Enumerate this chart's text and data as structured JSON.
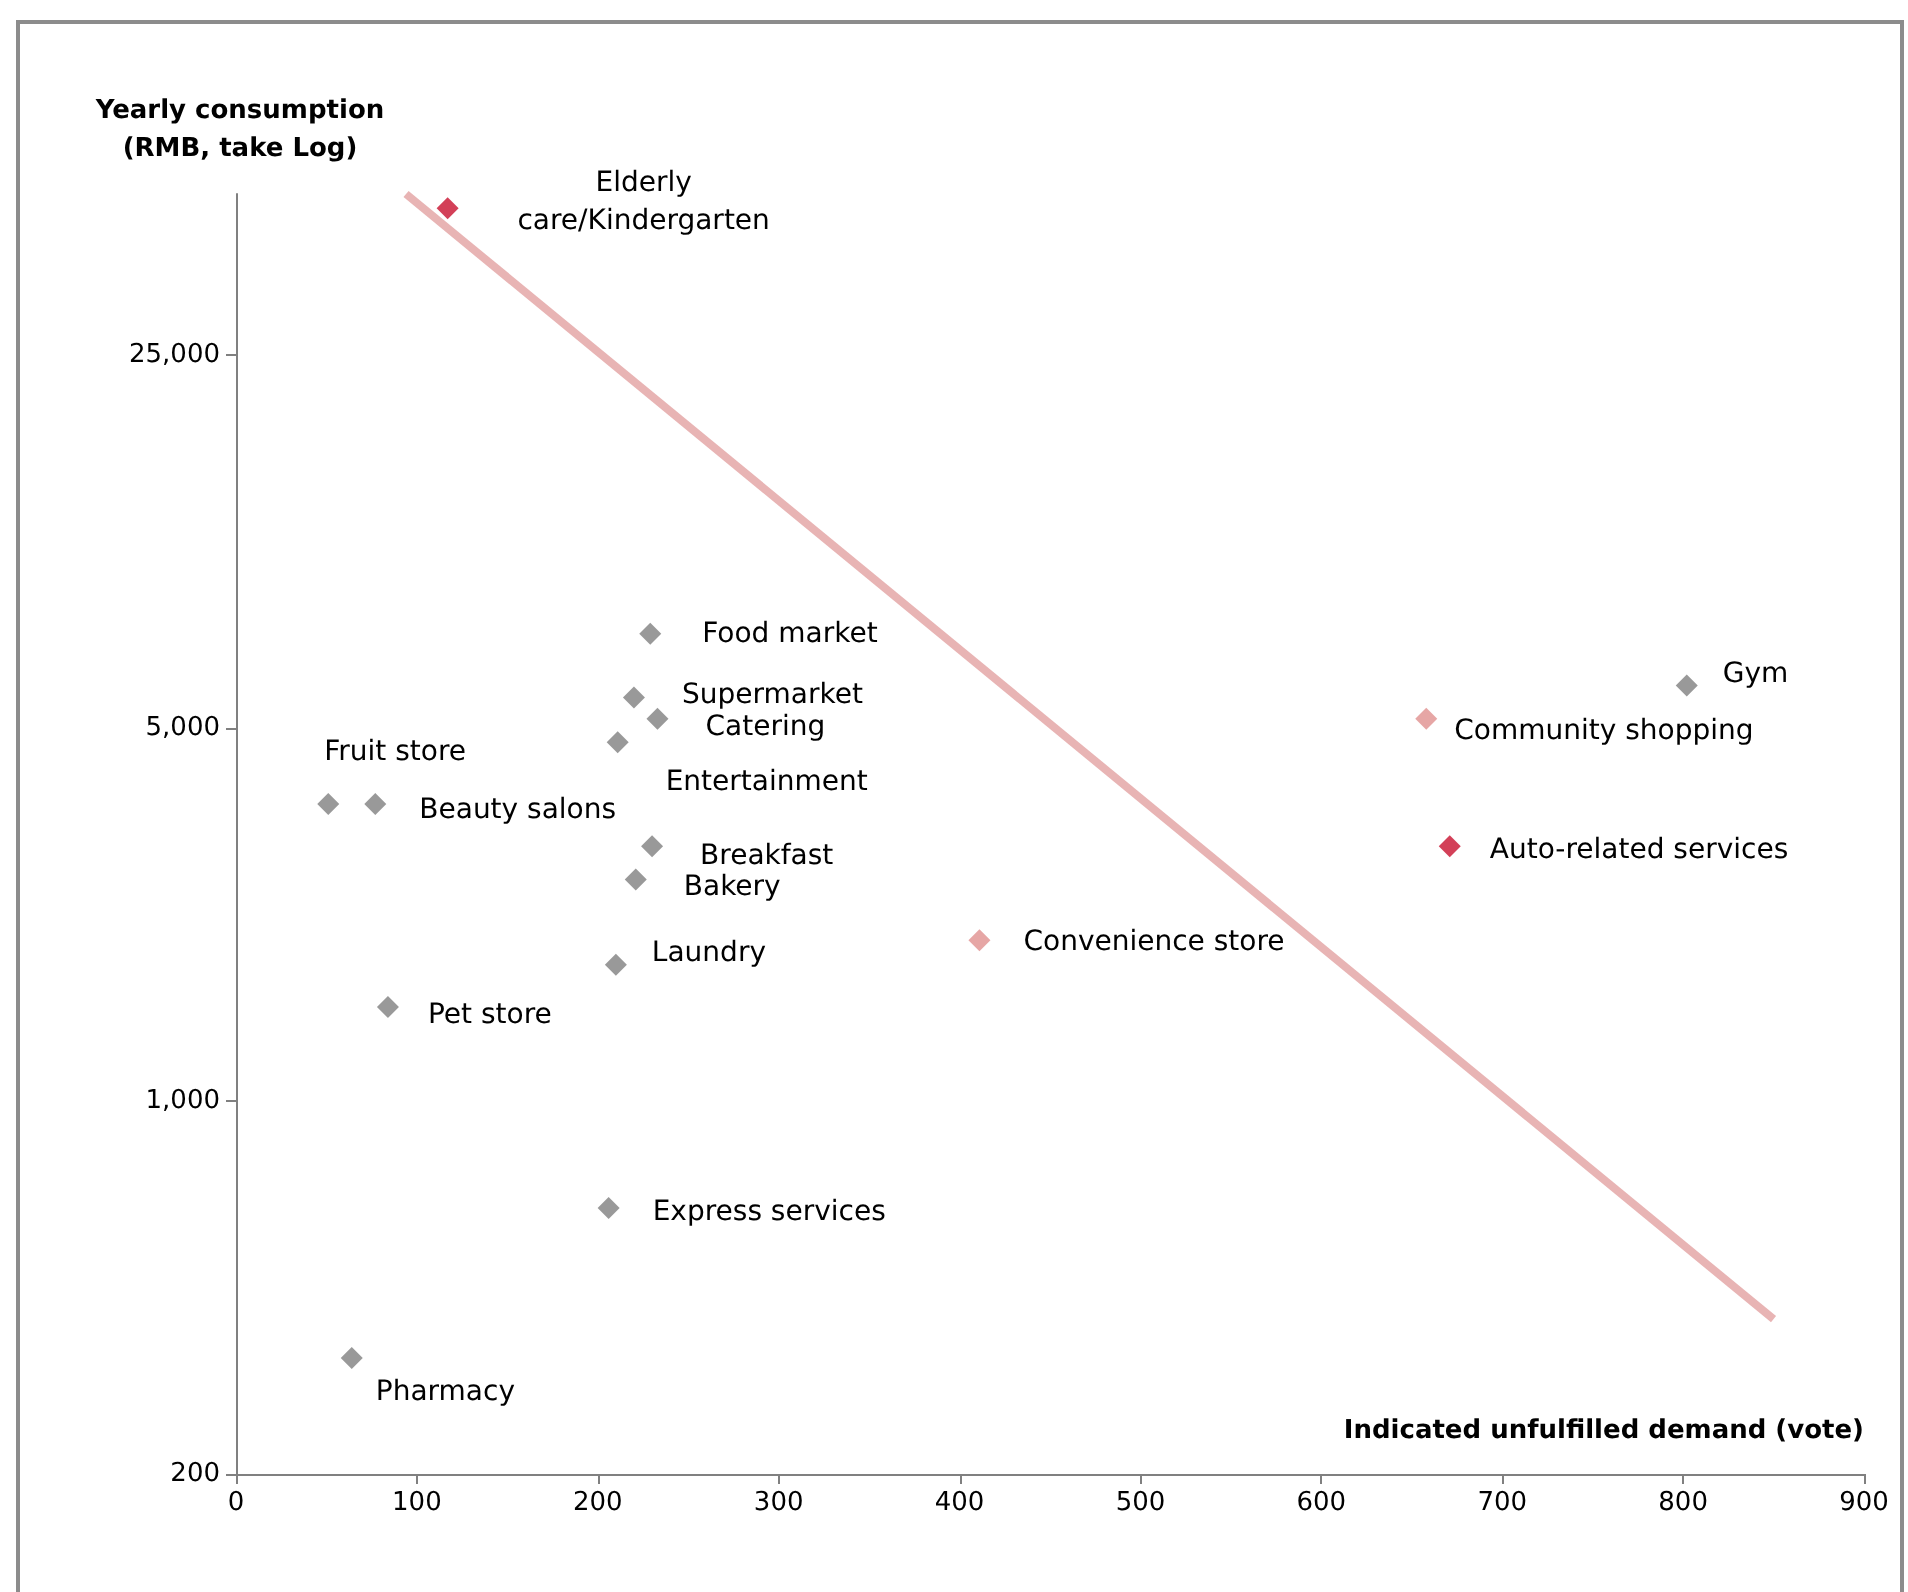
{
  "chart_data": {
    "type": "scatter",
    "xlabel": "Indicated unfulfilled demand (vote)",
    "ylabel": "Yearly consumption\n(RMB, take Log)",
    "log": "y",
    "grid": false,
    "marker": "diamond",
    "xlim": [
      0,
      900
    ],
    "xticks": [
      0,
      100,
      200,
      300,
      400,
      500,
      600,
      700,
      800,
      900
    ],
    "ylim": [
      200,
      50000
    ],
    "yticks": [
      200,
      {
        "value": 1000,
        "label": "1,000"
      },
      {
        "value": 5000,
        "label": "5,000"
      },
      {
        "value": 25000,
        "label": "25,000"
      }
    ],
    "series": [
      {
        "color": "#7f7f7f",
        "x": [
          229,
          220,
          233,
          211,
          51,
          77,
          230,
          221,
          210,
          84,
          206,
          64,
          802
        ],
        "values": [
          7500,
          5700,
          5200,
          4700,
          3600,
          3600,
          3000,
          2600,
          1800,
          1500,
          630,
          330,
          6000
        ]
      },
      {
        "color": "#e0908f",
        "x": [
          411,
          658
        ],
        "values": [
          2000,
          5200
        ]
      },
      {
        "color": "#c8102e",
        "x": [
          117,
          671
        ],
        "values": [
          47000,
          3000
        ]
      },
      {
        "type": "line",
        "color": "#e8b4b4",
        "marker": "none",
        "x": [
          94,
          850
        ],
        "values": [
          50000,
          390
        ]
      }
    ],
    "annotations": [
      {
        "text": "Food market",
        "x": 229,
        "y": 7500
      },
      {
        "text": "Supermarket",
        "x": 220,
        "y": 5700
      },
      {
        "text": "Catering",
        "x": 233,
        "y": 5200
      },
      {
        "text": "Entertainment",
        "x": 211,
        "y": 4700
      },
      {
        "text": "Fruit store",
        "x": 51,
        "y": 3600
      },
      {
        "text": "Beauty salons",
        "x": 77,
        "y": 3600
      },
      {
        "text": "Breakfast",
        "x": 230,
        "y": 3000
      },
      {
        "text": "Bakery",
        "x": 221,
        "y": 2600
      },
      {
        "text": "Laundry",
        "x": 210,
        "y": 1800
      },
      {
        "text": "Pet store",
        "x": 84,
        "y": 1500
      },
      {
        "text": "Express services",
        "x": 206,
        "y": 630
      },
      {
        "text": "Pharmacy",
        "x": 64,
        "y": 330
      },
      {
        "text": "Gym",
        "x": 802,
        "y": 6000
      },
      {
        "text": "Convenience store",
        "x": 411,
        "y": 2000
      },
      {
        "text": "Community shopping",
        "x": 658,
        "y": 5200
      },
      {
        "text": "Elderly\ncare/Kindergarten",
        "x": 117,
        "y": 47000
      },
      {
        "text": "Auto-related services",
        "x": 671,
        "y": 3000
      }
    ]
  }
}
